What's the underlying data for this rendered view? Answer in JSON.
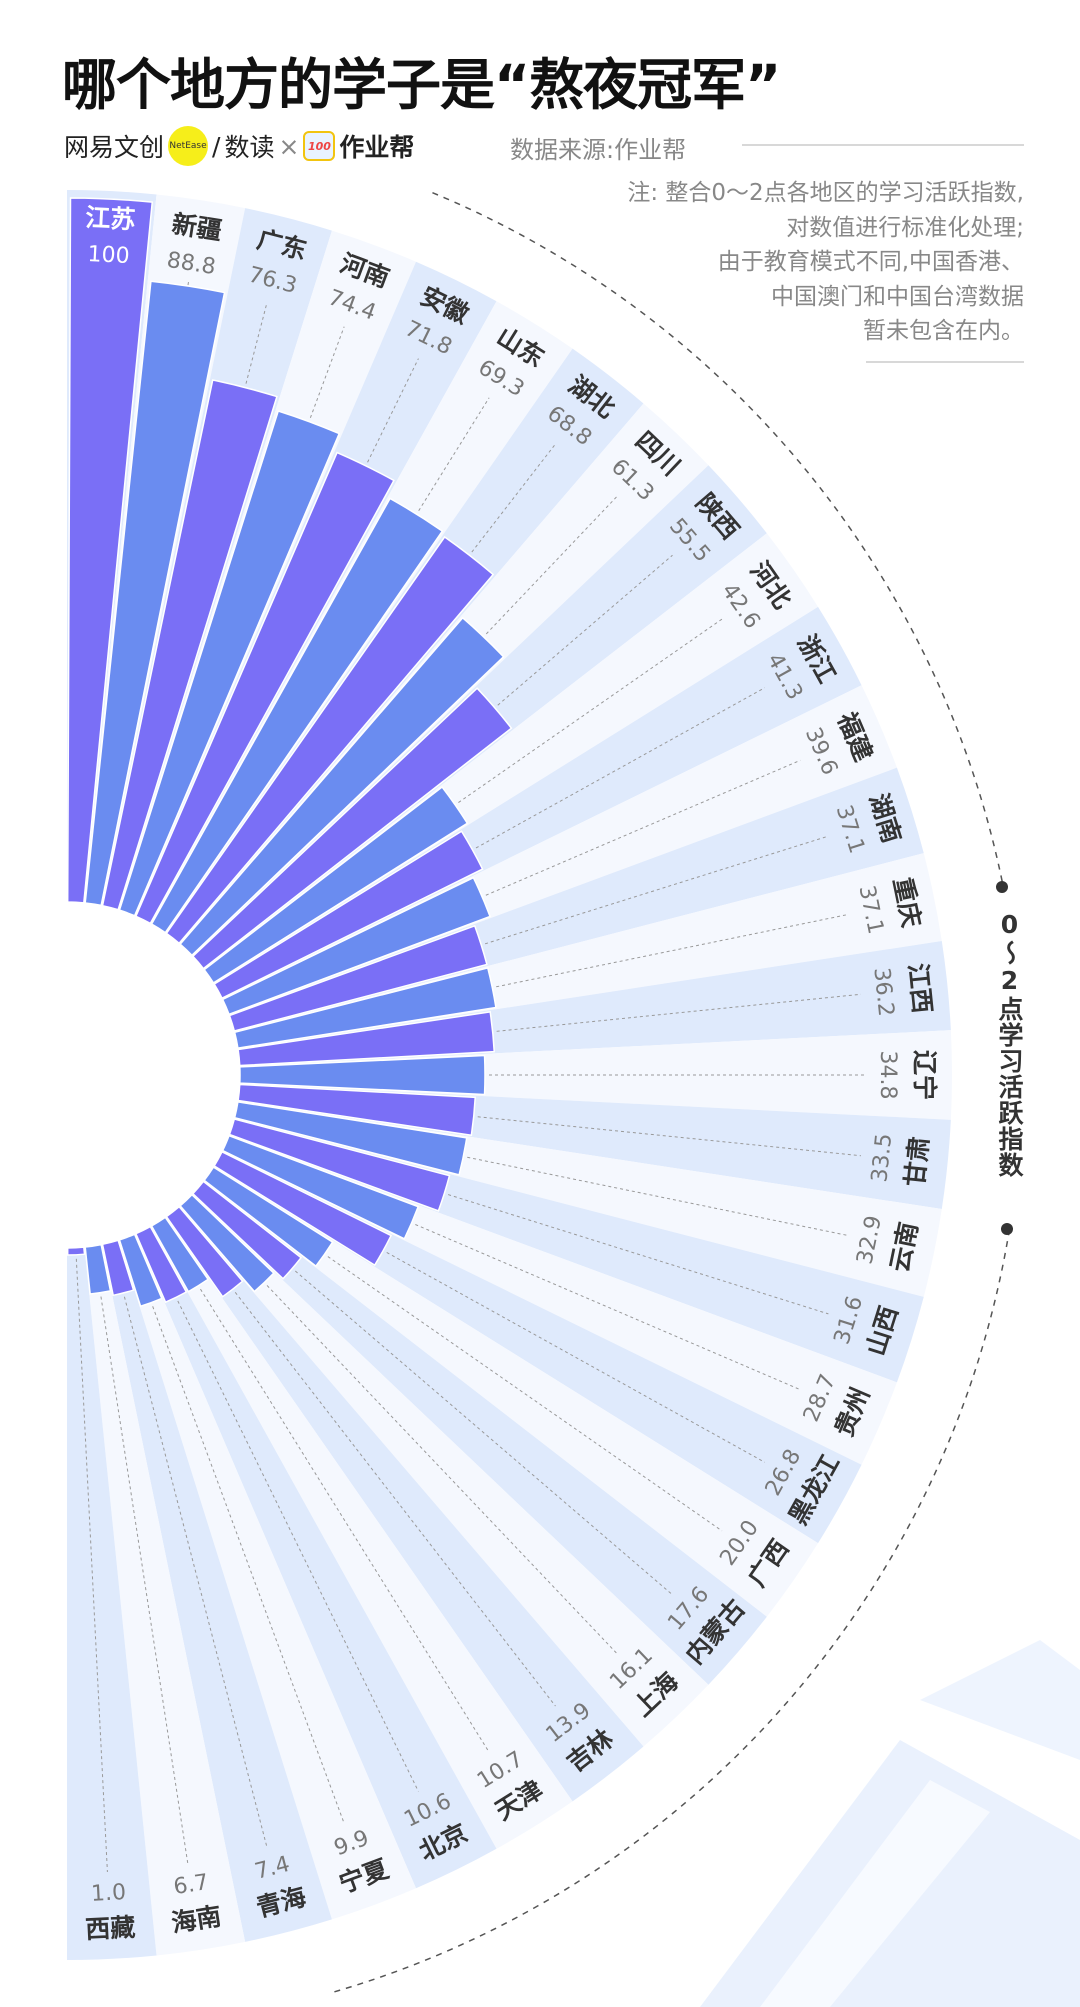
{
  "header": {
    "title": "哪个地方的学子是“熬夜冠军”",
    "logo": {
      "brand": "网易文创",
      "badge": "NetEase",
      "slash": "/",
      "column": "数读",
      "times": "×",
      "partner_icon": "100",
      "partner": "作业帮"
    },
    "source": "数据来源:作业帮",
    "notes": [
      "注: 整合0～2点各地区的学习活跃指数,",
      "对数值进行标准化处理;",
      "由于教育模式不同,中国香港、",
      "中国澳门和中国台湾数据",
      "暂未包含在内。"
    ]
  },
  "chart_data": {
    "type": "radial_bar",
    "axis_label": "0～2点学习活跃指数",
    "categories": [
      "江苏",
      "新疆",
      "广东",
      "河南",
      "安徽",
      "山东",
      "湖北",
      "四川",
      "陕西",
      "河北",
      "浙江",
      "福建",
      "湖南",
      "重庆",
      "江西",
      "辽宁",
      "甘肃",
      "云南",
      "山西",
      "贵州",
      "黑龙江",
      "广西",
      "内蒙古",
      "上海",
      "吉林",
      "天津",
      "北京",
      "宁夏",
      "青海",
      "海南",
      "西藏"
    ],
    "values": [
      100,
      88.8,
      76.3,
      74.4,
      71.8,
      69.3,
      68.8,
      61.3,
      55.5,
      42.6,
      41.3,
      39.6,
      37.1,
      37.1,
      36.2,
      34.8,
      33.5,
      32.9,
      31.6,
      28.7,
      26.8,
      20.0,
      17.6,
      16.1,
      13.9,
      10.7,
      10.6,
      9.9,
      7.4,
      6.7,
      1.0
    ],
    "value_labels": [
      "100",
      "88.8",
      "76.3",
      "74.4",
      "71.8",
      "69.3",
      "68.8",
      "61.3",
      "55.5",
      "42.6",
      "41.3",
      "39.6",
      "37.1",
      "37.1",
      "36.2",
      "34.8",
      "33.5",
      "32.9",
      "31.6",
      "28.7",
      "26.8",
      "20.0",
      "17.6",
      "16.1",
      "13.9",
      "10.7",
      "10.6",
      "9.9",
      "7.4",
      "6.7",
      "1.0"
    ],
    "bar_colors": [
      "#7a6ff6",
      "#6a8cf0"
    ]
  }
}
